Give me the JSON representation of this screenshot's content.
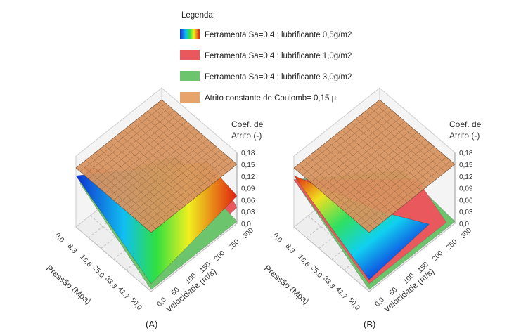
{
  "legend": {
    "title": "Legenda:",
    "items": [
      {
        "label": "Ferramenta Sa=0,4 ; lubrificante 0,5g/m2",
        "color": "gradient"
      },
      {
        "label": "Ferramenta Sa=0,4 ; lubrificante 1,0g/m2",
        "color": "#e8585c"
      },
      {
        "label": "Ferramenta Sa=0,4 ; lubrificante 3,0g/m2",
        "color": "#6cc46c"
      },
      {
        "label": "Atrito constante de Coulomb= 0,15 µ",
        "color": "#e6a46a"
      }
    ]
  },
  "chart_data": [
    {
      "type": "surface",
      "panel": "(A)",
      "xlabel": "Pressão (Mpa)",
      "ylabel": "Velocidade (m/s)",
      "zlabel_line1": "Coef. de",
      "zlabel_line2": "Atrito (-)",
      "x_ticks": [
        "0,0",
        "8,3",
        "16,6",
        "25,0",
        "33,3",
        "41,7",
        "50,0"
      ],
      "y_ticks": [
        "0,0",
        "50",
        "100",
        "150",
        "200",
        "250",
        "300"
      ],
      "z_ticks": [
        "0,18",
        "0,15",
        "0,12",
        "0,09",
        "0,06",
        "0,03",
        "0,0"
      ],
      "xlim": [
        0,
        50
      ],
      "ylim": [
        0,
        300
      ],
      "zlim": [
        0,
        0.18
      ],
      "coulomb_constant": 0.15
    },
    {
      "type": "surface",
      "panel": "(B)",
      "xlabel": "Pressão (Mpa)",
      "ylabel": "Velocidade (m/s)",
      "zlabel_line1": "Coef. de",
      "zlabel_line2": "Atrito (-)",
      "x_ticks": [
        "0,0",
        "8,3",
        "16,6",
        "25,0",
        "33,3",
        "41,7",
        "50,0"
      ],
      "y_ticks": [
        "0,0",
        "50",
        "100",
        "150",
        "200",
        "250",
        "300"
      ],
      "z_ticks": [
        "0,18",
        "0,15",
        "0,12",
        "0,09",
        "0,06",
        "0,03",
        "0,0"
      ],
      "xlim": [
        0,
        50
      ],
      "ylim": [
        0,
        300
      ],
      "zlim": [
        0,
        0.18
      ],
      "coulomb_constant": 0.15
    }
  ]
}
